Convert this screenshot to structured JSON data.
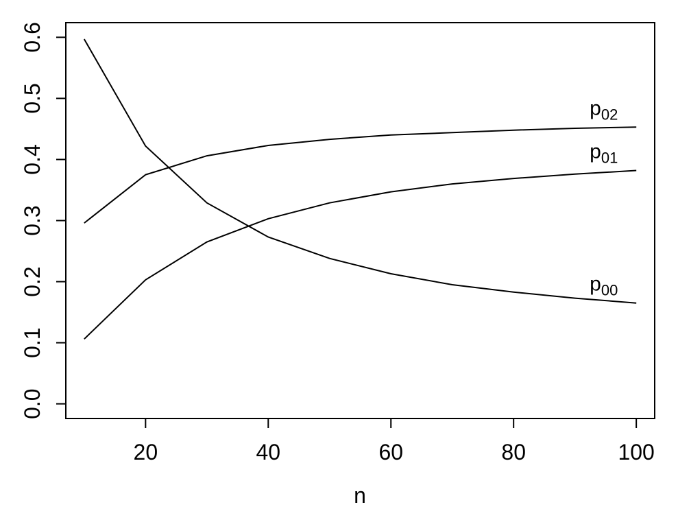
{
  "chart_data": {
    "type": "line",
    "title": "",
    "xlabel": "n",
    "ylabel": "",
    "xlim": [
      7,
      103
    ],
    "ylim": [
      -0.024,
      0.624
    ],
    "x_ticks": [
      20,
      40,
      60,
      80,
      100
    ],
    "y_ticks": [
      0.0,
      0.1,
      0.2,
      0.3,
      0.4,
      0.5,
      0.6
    ],
    "x_tick_labels": [
      "20",
      "40",
      "60",
      "80",
      "100"
    ],
    "y_tick_labels": [
      "0.0",
      "0.1",
      "0.2",
      "0.3",
      "0.4",
      "0.5",
      "0.6"
    ],
    "grid": false,
    "legend": "none",
    "line_color": "#000000",
    "x": [
      10,
      20,
      30,
      40,
      50,
      60,
      70,
      80,
      90,
      100
    ],
    "series": [
      {
        "name": "p00",
        "label_main": "p",
        "label_sub": "00",
        "values": [
          0.597,
          0.422,
          0.329,
          0.273,
          0.238,
          0.213,
          0.195,
          0.183,
          0.173,
          0.165
        ]
      },
      {
        "name": "p01",
        "label_main": "p",
        "label_sub": "01",
        "values": [
          0.106,
          0.203,
          0.265,
          0.303,
          0.329,
          0.347,
          0.36,
          0.369,
          0.376,
          0.382
        ]
      },
      {
        "name": "p02",
        "label_main": "p",
        "label_sub": "02",
        "values": [
          0.296,
          0.375,
          0.406,
          0.423,
          0.433,
          0.44,
          0.444,
          0.448,
          0.451,
          0.453
        ]
      }
    ]
  }
}
